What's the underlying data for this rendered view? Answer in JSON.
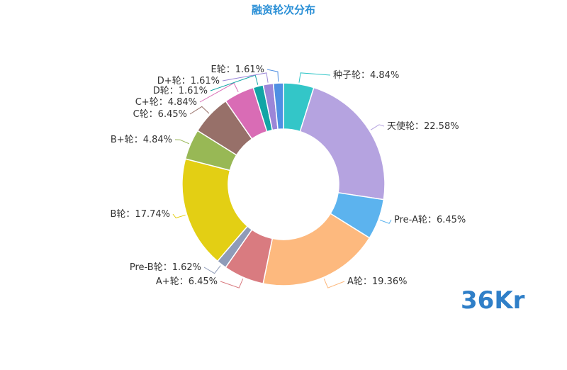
{
  "title": "融资轮次分布",
  "logo_text": "36Kr",
  "colors": {
    "title": "#2a8fd6",
    "logo": "#2f7fc8"
  },
  "chart_data": {
    "type": "pie",
    "variant": "donut",
    "title": "融资轮次分布",
    "label_separator": "：",
    "slices": [
      {
        "name": "种子轮",
        "value": 4.84,
        "color": "#33c6c8"
      },
      {
        "name": "天使轮",
        "value": 22.58,
        "color": "#b5a3e0"
      },
      {
        "name": "Pre-A轮",
        "value": 6.45,
        "color": "#5cb3ee"
      },
      {
        "name": "A轮",
        "value": 19.36,
        "color": "#fdb97e"
      },
      {
        "name": "A+轮",
        "value": 6.45,
        "color": "#d97b80"
      },
      {
        "name": "Pre-B轮",
        "value": 1.62,
        "color": "#8f9bb8"
      },
      {
        "name": "B轮",
        "value": 17.74,
        "color": "#e3cf14"
      },
      {
        "name": "B+轮",
        "value": 4.84,
        "color": "#98b855"
      },
      {
        "name": "C轮",
        "value": 6.45,
        "color": "#977069"
      },
      {
        "name": "C+轮",
        "value": 4.84,
        "color": "#d96cb5"
      },
      {
        "name": "D轮",
        "value": 1.61,
        "color": "#11a5a5"
      },
      {
        "name": "D+轮",
        "value": 1.61,
        "color": "#9b86d8"
      },
      {
        "name": "E轮",
        "value": 1.61,
        "color": "#4f8fe3"
      }
    ]
  }
}
